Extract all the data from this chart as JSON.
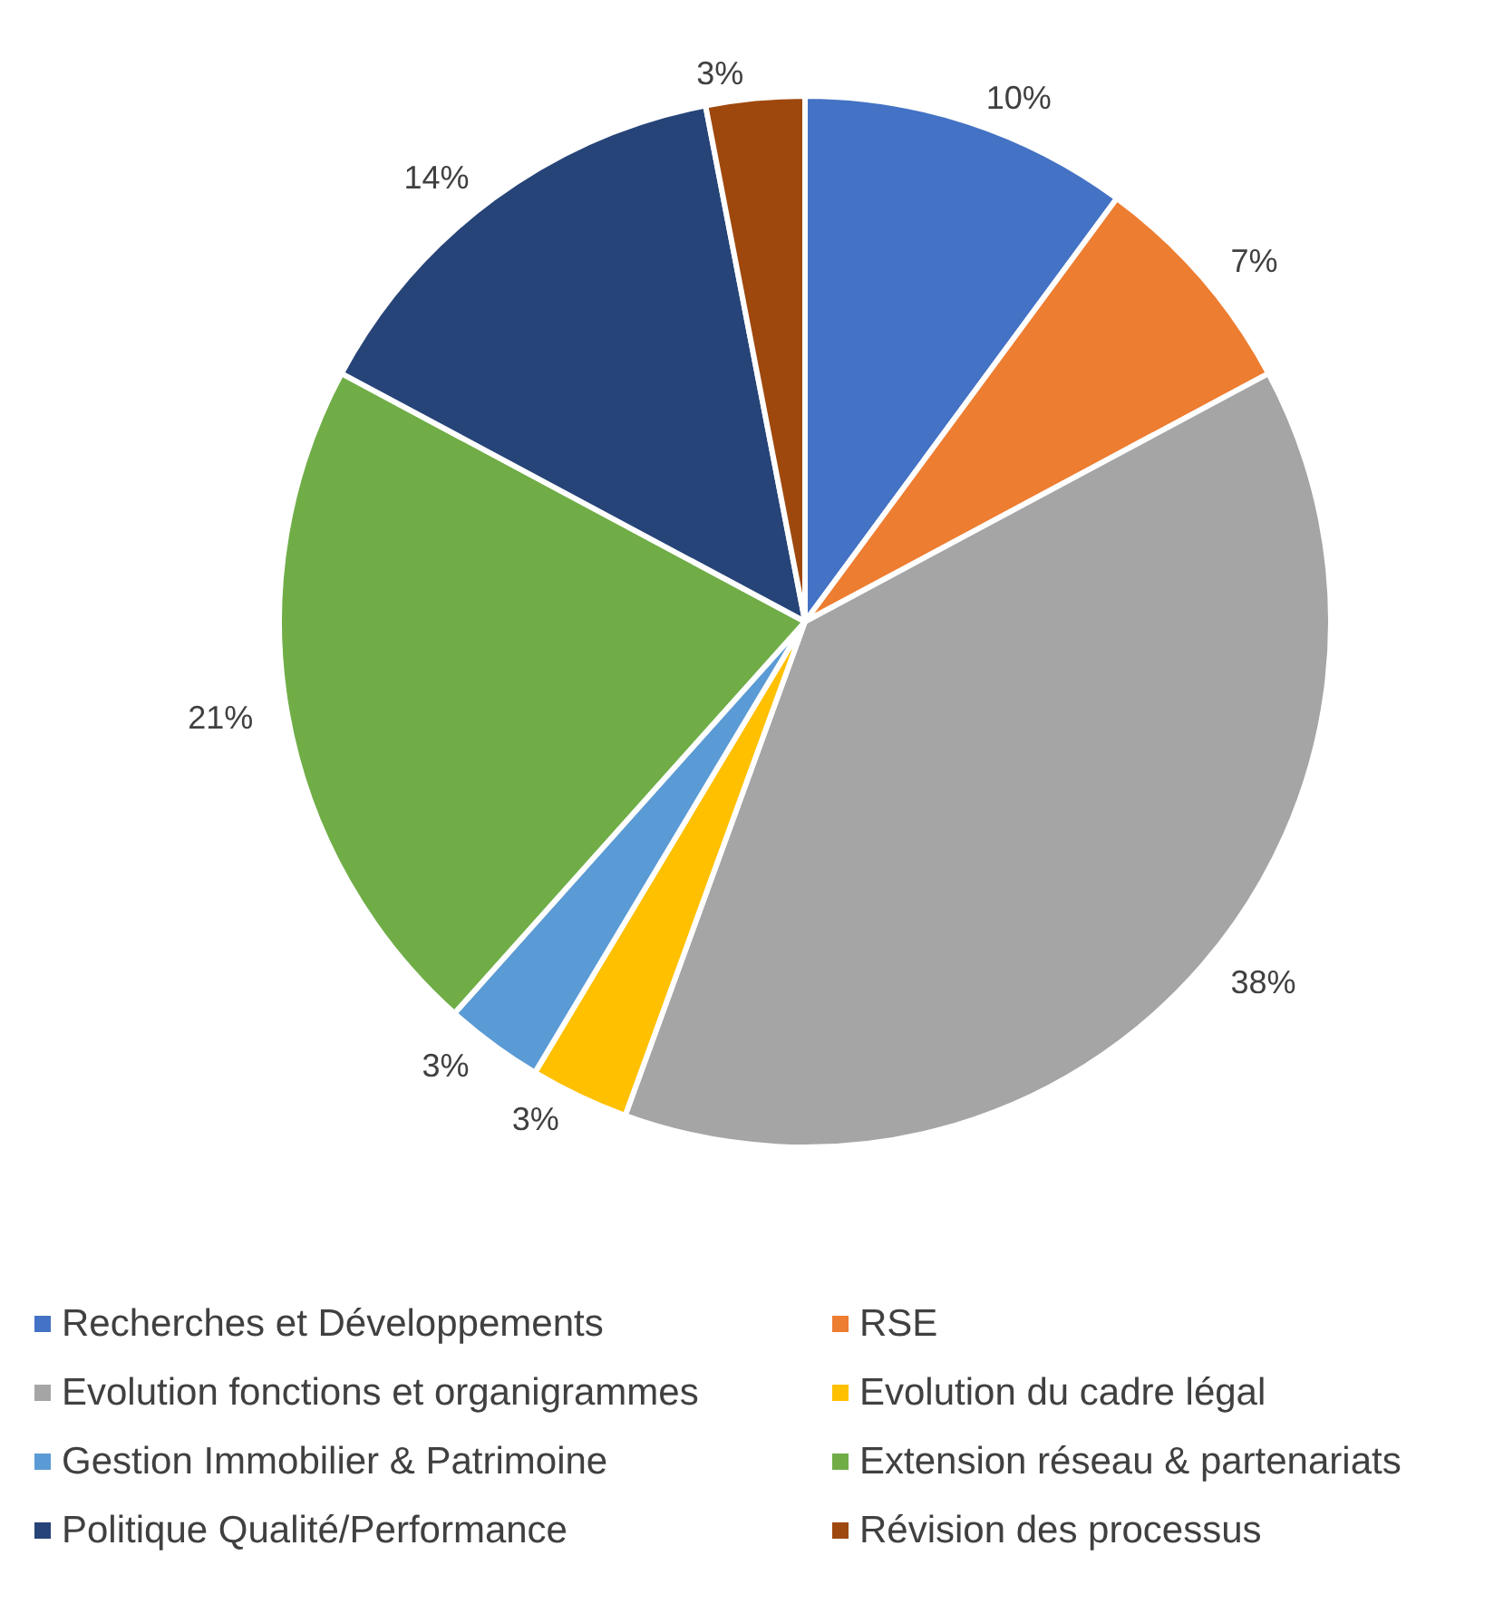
{
  "chart_data": {
    "type": "pie",
    "categories": [
      "Recherches et Développements",
      "RSE",
      "Evolution fonctions et organigrammes",
      "Evolution du cadre légal",
      "Gestion Immobilier & Patrimoine",
      "Extension réseau & partenariats",
      "Politique Qualité/Performance",
      "Révision des processus"
    ],
    "values": [
      10,
      7,
      38,
      3,
      3,
      21,
      14,
      3
    ],
    "value_labels": [
      "10%",
      "7%",
      "38%",
      "3%",
      "3%",
      "21%",
      "14%",
      "3%"
    ],
    "colors": [
      "#4472c4",
      "#ed7d31",
      "#a5a5a5",
      "#ffc000",
      "#5b9bd5",
      "#70ad47",
      "#264478",
      "#9e480e"
    ],
    "legend": "bottom"
  }
}
